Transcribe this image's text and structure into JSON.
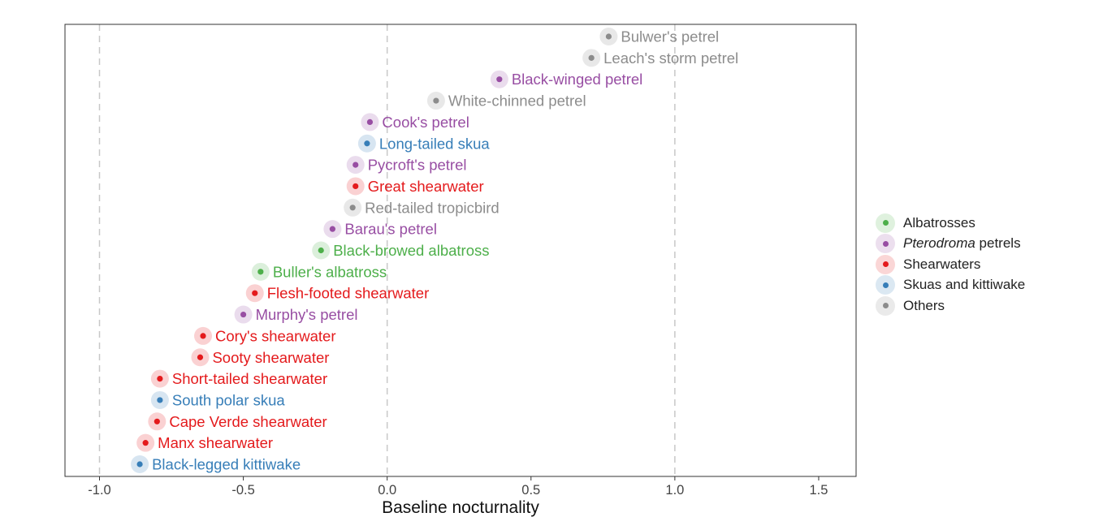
{
  "chart_data": {
    "type": "scatter",
    "xlabel": "Baseline nocturnality",
    "ylabel": "",
    "xlim": [
      -1.12,
      1.63
    ],
    "x_ticks": [
      "-1.0",
      "-0.5",
      "0.0",
      "0.5",
      "1.0",
      "1.5"
    ],
    "x_tick_values": [
      -1.0,
      -0.5,
      0.0,
      0.5,
      1.0,
      1.5
    ],
    "vlines": [
      -1.0,
      0.0,
      1.0
    ],
    "grid": false,
    "legend_position": "right",
    "groups": {
      "Albatrosses": "#4daf4a",
      "Pterodroma petrels": "#984ea3",
      "Shearwaters": "#e41a1c",
      "Skuas and kittiwake": "#377eb8",
      "Others": "#8c8c8c"
    },
    "points": [
      {
        "species": "Bulwer's petrel",
        "group": "Others",
        "x": 0.77
      },
      {
        "species": "Leach's storm petrel",
        "group": "Others",
        "x": 0.71
      },
      {
        "species": "Black-winged petrel",
        "group": "Pterodroma petrels",
        "x": 0.39
      },
      {
        "species": "White-chinned petrel",
        "group": "Others",
        "x": 0.17
      },
      {
        "species": "Cook's petrel",
        "group": "Pterodroma petrels",
        "x": -0.06
      },
      {
        "species": "Long-tailed skua",
        "group": "Skuas and kittiwake",
        "x": -0.07
      },
      {
        "species": "Pycroft's petrel",
        "group": "Pterodroma petrels",
        "x": -0.11
      },
      {
        "species": "Great shearwater",
        "group": "Shearwaters",
        "x": -0.11
      },
      {
        "species": "Red-tailed tropicbird",
        "group": "Others",
        "x": -0.12
      },
      {
        "species": "Barau's petrel",
        "group": "Pterodroma petrels",
        "x": -0.19
      },
      {
        "species": "Black-browed albatross",
        "group": "Albatrosses",
        "x": -0.23
      },
      {
        "species": "Buller's albatross",
        "group": "Albatrosses",
        "x": -0.44
      },
      {
        "species": "Flesh-footed shearwater",
        "group": "Shearwaters",
        "x": -0.46
      },
      {
        "species": "Murphy's petrel",
        "group": "Pterodroma petrels",
        "x": -0.5
      },
      {
        "species": "Cory's shearwater",
        "group": "Shearwaters",
        "x": -0.64
      },
      {
        "species": "Sooty shearwater",
        "group": "Shearwaters",
        "x": -0.65
      },
      {
        "species": "Short-tailed shearwater",
        "group": "Shearwaters",
        "x": -0.79
      },
      {
        "species": "South polar skua",
        "group": "Skuas and kittiwake",
        "x": -0.79
      },
      {
        "species": "Cape Verde shearwater",
        "group": "Shearwaters",
        "x": -0.8
      },
      {
        "species": "Manx shearwater",
        "group": "Shearwaters",
        "x": -0.84
      },
      {
        "species": "Black-legged kittiwake",
        "group": "Skuas and kittiwake",
        "x": -0.86
      }
    ],
    "legend": [
      {
        "label": "Albatrosses",
        "group": "Albatrosses"
      },
      {
        "label": "Pterodroma",
        "label_suffix": " petrels",
        "group": "Pterodroma petrels"
      },
      {
        "label": "Shearwaters",
        "group": "Shearwaters"
      },
      {
        "label": "Skuas and kittiwake",
        "group": "Skuas and kittiwake"
      },
      {
        "label": "Others",
        "group": "Others"
      }
    ]
  }
}
